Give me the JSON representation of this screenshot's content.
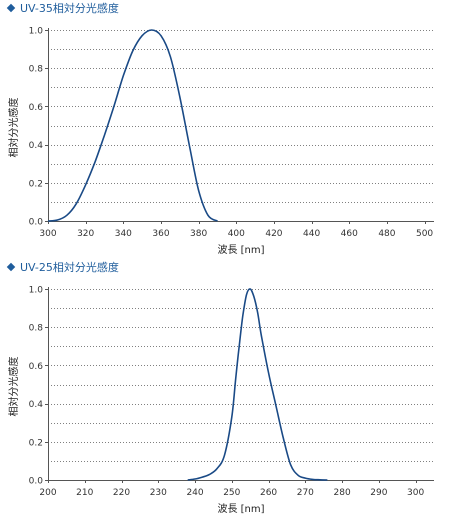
{
  "chart_data": [
    {
      "type": "line",
      "title": "UV-35相対分光感度",
      "xlabel": "波長 [nm]",
      "ylabel": "相対分光感度",
      "xlim": [
        300,
        505
      ],
      "ylim": [
        0,
        1.0
      ],
      "xticks": [
        300,
        320,
        340,
        360,
        380,
        400,
        420,
        440,
        460,
        480,
        500
      ],
      "yticks": [
        0.0,
        0.2,
        0.4,
        0.6,
        0.8,
        1.0
      ],
      "grid": "horizontal dotted",
      "colors": {
        "line": "#1a4a86",
        "title": "#1f5d9c",
        "axis": "#555555",
        "grid": "#808080"
      },
      "series": [
        {
          "x": [
            300,
            305,
            310,
            315,
            320,
            325,
            330,
            335,
            340,
            345,
            350,
            355,
            360,
            365,
            370,
            375,
            380,
            385,
            390
          ],
          "y": [
            0.0,
            0.005,
            0.03,
            0.09,
            0.19,
            0.31,
            0.45,
            0.6,
            0.76,
            0.89,
            0.97,
            1.0,
            0.97,
            0.86,
            0.65,
            0.4,
            0.16,
            0.03,
            0.0
          ]
        }
      ]
    },
    {
      "type": "line",
      "title": "UV-25相対分光感度",
      "xlabel": "波長 [nm]",
      "ylabel": "相対分光感度",
      "xlim": [
        200,
        305
      ],
      "ylim": [
        0,
        1.0
      ],
      "xticks": [
        200,
        210,
        220,
        230,
        240,
        250,
        260,
        270,
        280,
        290,
        300
      ],
      "yticks": [
        0.0,
        0.2,
        0.4,
        0.6,
        0.8,
        1.0
      ],
      "grid": "horizontal dotted",
      "colors": {
        "line": "#1a4a86",
        "title": "#1f5d9c",
        "axis": "#555555",
        "grid": "#808080"
      },
      "series": [
        {
          "x": [
            238,
            240,
            242,
            244,
            246,
            248,
            250,
            251,
            252,
            253,
            254,
            255,
            256,
            257,
            258,
            260,
            262,
            264,
            266,
            268,
            270,
            272,
            274,
            276
          ],
          "y": [
            0.0,
            0.005,
            0.015,
            0.03,
            0.06,
            0.13,
            0.33,
            0.52,
            0.7,
            0.86,
            0.97,
            1.0,
            0.96,
            0.88,
            0.76,
            0.56,
            0.39,
            0.22,
            0.08,
            0.025,
            0.01,
            0.003,
            0.001,
            0.0
          ]
        }
      ]
    }
  ]
}
